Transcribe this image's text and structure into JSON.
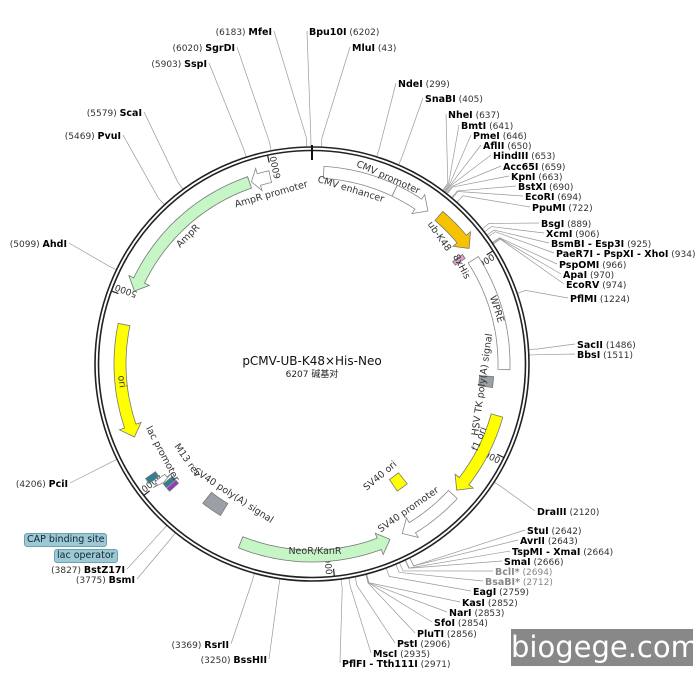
{
  "plasmid": {
    "name": "pCMV-UB-K48×His-Neo",
    "size_label": "6207 碱基对",
    "length": 6207
  },
  "ticks": [
    "1000",
    "2000",
    "3000",
    "4000",
    "5000",
    "6000"
  ],
  "features": [
    {
      "name": "CMV enhancer",
      "start": 60,
      "end": 440,
      "color": "#ffffff",
      "shape": "box"
    },
    {
      "name": "CMV promoter",
      "start": 440,
      "end": 640,
      "color": "#ffffff",
      "shape": "arrow-cw"
    },
    {
      "name": "ub-K48",
      "start": 700,
      "end": 925,
      "color": "#f7c300",
      "shape": "arrow-cw"
    },
    {
      "name": "8xHis",
      "start": 930,
      "end": 955,
      "color": "#d9a0c8",
      "shape": "box"
    },
    {
      "name": "WPRE",
      "start": 985,
      "end": 1580,
      "color": "#ffffff",
      "shape": "box"
    },
    {
      "name": "HSV TK poly(A) signal",
      "start": 1620,
      "end": 1680,
      "color": "#9aa0a6",
      "shape": "box"
    },
    {
      "name": "f1 ori",
      "start": 1820,
      "end": 2260,
      "color": "#ffff00",
      "shape": "arrow-cw"
    },
    {
      "name": "SV40 promoter",
      "start": 2290,
      "end": 2620,
      "color": "#ffffff",
      "shape": "arrow-cw"
    },
    {
      "name": "SV40 ori",
      "start": 2440,
      "end": 2520,
      "color": "#ffff00",
      "shape": "box"
    },
    {
      "name": "NeoR/KanR",
      "start": 2690,
      "end": 3480,
      "color": "#c6f5c6",
      "shape": "arrow-ccw"
    },
    {
      "name": "SV40 poly(A) signal",
      "start": 3640,
      "end": 3760,
      "color": "#9aa0a6",
      "shape": "box"
    },
    {
      "name": "M13 rev",
      "start": 3935,
      "end": 3955,
      "color": "#9933cc",
      "shape": "box"
    },
    {
      "name": "lac operator",
      "start": 3960,
      "end": 3985,
      "color": "#2e7f8f",
      "shape": "box"
    },
    {
      "name": "lac promoter",
      "start": 3990,
      "end": 4020,
      "color": "#ffffff",
      "shape": "arrow-ccw"
    },
    {
      "name": "CAP binding site",
      "start": 4030,
      "end": 4060,
      "color": "#2e7f8f",
      "shape": "box"
    },
    {
      "name": "ori",
      "start": 4270,
      "end": 4860,
      "color": "#ffff00",
      "shape": "arrow-ccw"
    },
    {
      "name": "AmpR",
      "start": 5040,
      "end": 5880,
      "color": "#c6f5c6",
      "shape": "arrow-ccw"
    },
    {
      "name": "AmpR promoter",
      "start": 5890,
      "end": 5990,
      "color": "#ffffff",
      "shape": "arrow-ccw"
    }
  ],
  "feature_callouts": [
    "CAP binding site",
    "lac operator"
  ],
  "enzymes": [
    {
      "name": "Bpu10I",
      "pos": "6202"
    },
    {
      "name": "MluI",
      "pos": "43"
    },
    {
      "name": "NdeI",
      "pos": "299"
    },
    {
      "name": "SnaBI",
      "pos": "405"
    },
    {
      "name": "NheI",
      "pos": "637"
    },
    {
      "name": "BmtI",
      "pos": "641"
    },
    {
      "name": "PmeI",
      "pos": "646"
    },
    {
      "name": "AflII",
      "pos": "650"
    },
    {
      "name": "HindIII",
      "pos": "653"
    },
    {
      "name": "Acc65I",
      "pos": "659"
    },
    {
      "name": "KpnI",
      "pos": "663"
    },
    {
      "name": "BstXI",
      "pos": "690"
    },
    {
      "name": "EcoRI",
      "pos": "694"
    },
    {
      "name": "PpuMI",
      "pos": "722"
    },
    {
      "name": "BsgI",
      "pos": "889"
    },
    {
      "name": "XcmI",
      "pos": "906"
    },
    {
      "name": "BsmBI - Esp3I",
      "pos": "925"
    },
    {
      "name": "PaeR7I - PspXI - XhoI",
      "pos": "934"
    },
    {
      "name": "PspOMI",
      "pos": "966"
    },
    {
      "name": "ApaI",
      "pos": "970"
    },
    {
      "name": "EcoRV",
      "pos": "974"
    },
    {
      "name": "PflMI",
      "pos": "1224"
    },
    {
      "name": "SacII",
      "pos": "1486"
    },
    {
      "name": "BbsI",
      "pos": "1511"
    },
    {
      "name": "DraIII",
      "pos": "2120"
    },
    {
      "name": "StuI",
      "pos": "2642"
    },
    {
      "name": "AvrII",
      "pos": "2643"
    },
    {
      "name": "TspMI - XmaI",
      "pos": "2664"
    },
    {
      "name": "SmaI",
      "pos": "2666"
    },
    {
      "name": "BclI*",
      "pos": "2694",
      "muted": true
    },
    {
      "name": "BsaBI*",
      "pos": "2712",
      "muted": true
    },
    {
      "name": "EagI",
      "pos": "2759"
    },
    {
      "name": "KasI",
      "pos": "2852"
    },
    {
      "name": "NarI",
      "pos": "2853"
    },
    {
      "name": "SfoI",
      "pos": "2854"
    },
    {
      "name": "PluTI",
      "pos": "2856"
    },
    {
      "name": "PstI",
      "pos": "2906"
    },
    {
      "name": "MscI",
      "pos": "2935"
    },
    {
      "name": "PflFI - Tth111I",
      "pos": "2971"
    },
    {
      "name": "BssHII",
      "pos": "3250"
    },
    {
      "name": "RsrII",
      "pos": "3369"
    },
    {
      "name": "BsmI",
      "pos": "3775"
    },
    {
      "name": "BstZ17I",
      "pos": "3827"
    },
    {
      "name": "PciI",
      "pos": "4206"
    },
    {
      "name": "AhdI",
      "pos": "5099"
    },
    {
      "name": "PvuI",
      "pos": "5469"
    },
    {
      "name": "ScaI",
      "pos": "5579"
    },
    {
      "name": "SspI",
      "pos": "5903"
    },
    {
      "name": "SgrDI",
      "pos": "6020"
    },
    {
      "name": "MfeI",
      "pos": "6183"
    }
  ],
  "watermark": "biogege.com"
}
